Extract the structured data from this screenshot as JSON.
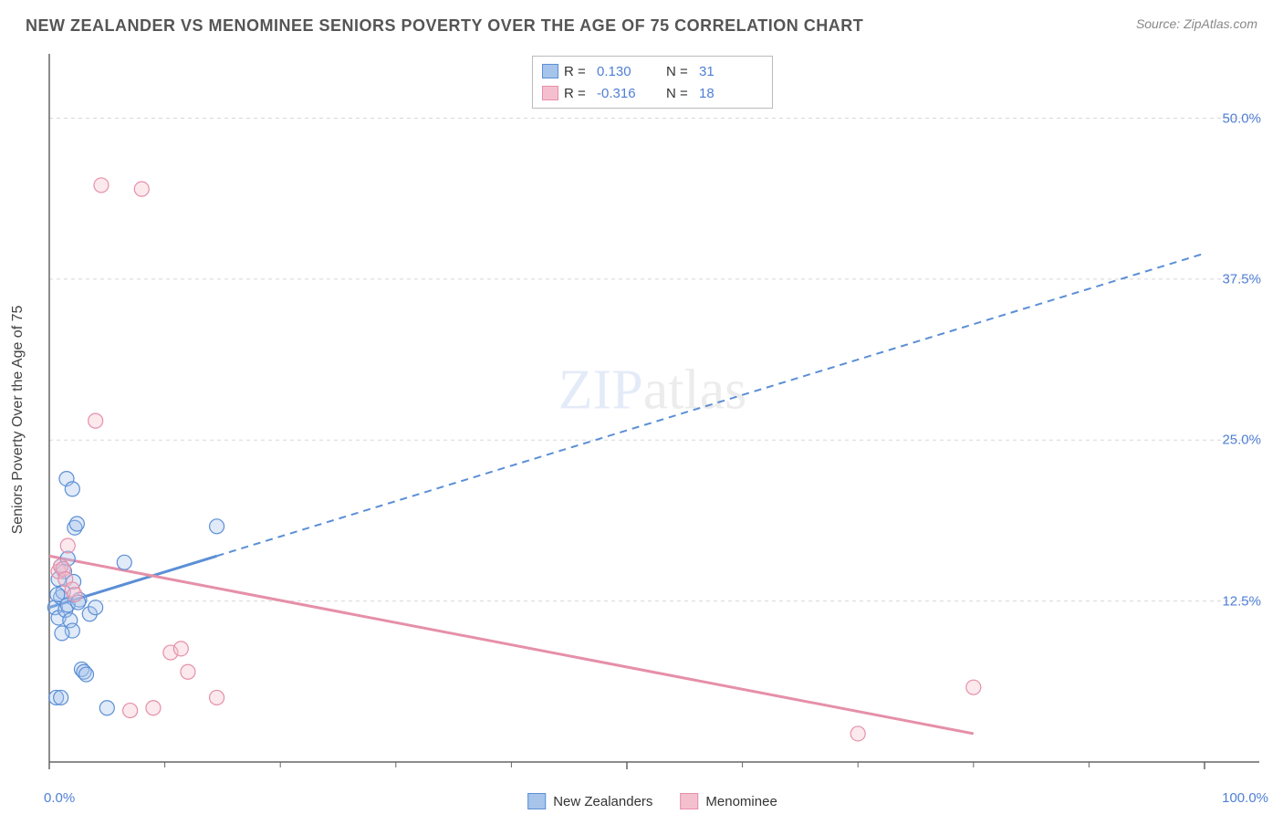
{
  "title": "NEW ZEALANDER VS MENOMINEE SENIORS POVERTY OVER THE AGE OF 75 CORRELATION CHART",
  "source_label": "Source:",
  "source_name": "ZipAtlas.com",
  "y_axis_label": "Seniors Poverty Over the Age of 75",
  "watermark_a": "ZIP",
  "watermark_b": "atlas",
  "chart": {
    "type": "scatter",
    "background_color": "#ffffff",
    "grid_color": "#d8d8d8",
    "axis_color": "#666666",
    "xlim": [
      0,
      100
    ],
    "ylim": [
      0,
      55
    ],
    "x_ticks": [
      0,
      50,
      100
    ],
    "x_tick_labels": [
      "0.0%",
      "",
      "100.0%"
    ],
    "y_gridlines": [
      12.5,
      25.0,
      37.5,
      50.0
    ],
    "y_tick_labels": [
      "12.5%",
      "25.0%",
      "37.5%",
      "50.0%"
    ],
    "x_minor_ticks": [
      10,
      20,
      30,
      40,
      60,
      70,
      80,
      90
    ],
    "marker_radius": 8,
    "marker_stroke_width": 1.2,
    "marker_fill_opacity": 0.35,
    "series": [
      {
        "name": "New Zealanders",
        "color_stroke": "#5b8fd6",
        "color_fill": "#a7c4ea",
        "R": "0.130",
        "N": "31",
        "points": [
          [
            0.5,
            12.0
          ],
          [
            0.8,
            11.2
          ],
          [
            1.0,
            12.8
          ],
          [
            1.2,
            13.2
          ],
          [
            1.4,
            11.8
          ],
          [
            1.6,
            12.2
          ],
          [
            1.8,
            11.0
          ],
          [
            2.0,
            10.2
          ],
          [
            2.2,
            18.2
          ],
          [
            2.4,
            18.5
          ],
          [
            2.6,
            12.6
          ],
          [
            2.8,
            7.2
          ],
          [
            3.0,
            7.0
          ],
          [
            3.2,
            6.8
          ],
          [
            0.6,
            5.0
          ],
          [
            1.0,
            5.0
          ],
          [
            5.0,
            4.2
          ],
          [
            1.5,
            22.0
          ],
          [
            2.0,
            21.2
          ],
          [
            6.5,
            15.5
          ],
          [
            14.5,
            18.3
          ],
          [
            3.5,
            11.5
          ],
          [
            4.0,
            12.0
          ],
          [
            1.0,
            15.2
          ],
          [
            1.3,
            14.8
          ],
          [
            0.8,
            14.2
          ],
          [
            1.6,
            15.8
          ],
          [
            2.1,
            14.0
          ],
          [
            0.7,
            13.0
          ],
          [
            2.5,
            12.4
          ],
          [
            1.1,
            10.0
          ]
        ],
        "trend": {
          "x1": 0,
          "y1": 12.0,
          "x_solid_end": 14.5,
          "y_solid_end": 16.0,
          "x2": 100,
          "y2": 39.5
        }
      },
      {
        "name": "Menominee",
        "color_stroke": "#e68fa8",
        "color_fill": "#f4c0cf",
        "R": "-0.316",
        "N": "18",
        "points": [
          [
            0.8,
            14.8
          ],
          [
            1.0,
            15.2
          ],
          [
            1.2,
            15.0
          ],
          [
            1.4,
            14.2
          ],
          [
            2.0,
            13.4
          ],
          [
            2.2,
            13.0
          ],
          [
            4.0,
            26.5
          ],
          [
            4.5,
            44.8
          ],
          [
            8.0,
            44.5
          ],
          [
            7.0,
            4.0
          ],
          [
            9.0,
            4.2
          ],
          [
            10.5,
            8.5
          ],
          [
            11.4,
            8.8
          ],
          [
            12.0,
            7.0
          ],
          [
            14.5,
            5.0
          ],
          [
            70.0,
            2.2
          ],
          [
            80.0,
            5.8
          ],
          [
            1.6,
            16.8
          ]
        ],
        "trend": {
          "x1": 0,
          "y1": 16.0,
          "x_solid_end": 80,
          "y_solid_end": 2.2,
          "x2": 80,
          "y2": 2.2
        }
      }
    ]
  },
  "legend_top": {
    "r_label": "R =",
    "n_label": "N ="
  }
}
